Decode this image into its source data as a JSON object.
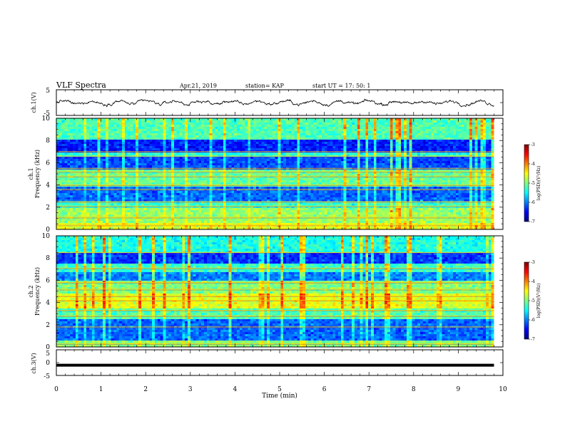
{
  "header": {
    "title": "VLF Spectra",
    "date": "Apr.21, 2019",
    "station": "station= KAP",
    "start": "start  UT =   17: 50: 1"
  },
  "chart_data": [
    {
      "type": "line",
      "name": "ch1-waveform",
      "ylabel": "ch.1(V)",
      "xlim": [
        0,
        10
      ],
      "ylim": [
        -5,
        5
      ],
      "yticks": [
        "5",
        "-5"
      ],
      "x_end": 9.8,
      "approx_range": [
        -1.5,
        1.5
      ]
    },
    {
      "type": "heatmap",
      "name": "ch1-spectrogram",
      "ylabel": "ch.1\nFrequency (kHz)",
      "xlim": [
        0,
        10
      ],
      "ylim": [
        0,
        10
      ],
      "yticks": [
        "0",
        "2",
        "4",
        "6",
        "8",
        "10"
      ],
      "x_end": 9.8,
      "bands": [
        {
          "f": [
            0,
            0.5
          ],
          "level": -4.6
        },
        {
          "f": [
            0.5,
            2.0
          ],
          "level": -4.9
        },
        {
          "f": [
            2.0,
            2.5
          ],
          "level": -5.3
        },
        {
          "f": [
            2.5,
            3.8
          ],
          "level": -6.1
        },
        {
          "f": [
            3.8,
            5.3
          ],
          "level": -5.1
        },
        {
          "f": [
            5.3,
            6.5
          ],
          "level": -6.2
        },
        {
          "f": [
            6.5,
            7.0
          ],
          "level": -5.4
        },
        {
          "f": [
            7.0,
            8.0
          ],
          "level": -6.4
        },
        {
          "f": [
            8.0,
            10.0
          ],
          "level": -5.2
        }
      ],
      "lines_khz": [
        0.4,
        1.1,
        2.1,
        2.5,
        3.6,
        4.0,
        4.8,
        5.2,
        5.5,
        6.6,
        7.0
      ],
      "colorbar": {
        "label": "log(PSD)(V²/Hz)",
        "range": [
          -7,
          -3
        ],
        "ticks": [
          "-3",
          "-4",
          "-5",
          "-6",
          "-7"
        ]
      }
    },
    {
      "type": "heatmap",
      "name": "ch2-spectrogram",
      "ylabel": "ch.2\nFrequency (kHz)",
      "xlim": [
        0,
        10
      ],
      "ylim": [
        0,
        10
      ],
      "yticks": [
        "0",
        "2",
        "4",
        "6",
        "8",
        "10"
      ],
      "x_end": 9.8,
      "bands": [
        {
          "f": [
            0,
            0.5
          ],
          "level": -5.0
        },
        {
          "f": [
            0.5,
            2.5
          ],
          "level": -6.1
        },
        {
          "f": [
            2.5,
            3.5
          ],
          "level": -5.2
        },
        {
          "f": [
            3.5,
            4.8
          ],
          "level": -4.6
        },
        {
          "f": [
            4.8,
            6.0
          ],
          "level": -5.0
        },
        {
          "f": [
            6.0,
            6.8
          ],
          "level": -6.0
        },
        {
          "f": [
            6.8,
            7.5
          ],
          "level": -5.3
        },
        {
          "f": [
            7.5,
            8.5
          ],
          "level": -6.3
        },
        {
          "f": [
            8.5,
            10.0
          ],
          "level": -5.4
        }
      ],
      "lines_khz": [
        0.3,
        1.8,
        2.8,
        3.3,
        4.2,
        4.6,
        5.2,
        5.8,
        7.1,
        8.5
      ],
      "colorbar": {
        "label": "log(PSD)(V²/Hz)",
        "range": [
          -7,
          -3
        ],
        "ticks": [
          "-3",
          "-4",
          "-5",
          "-6",
          "-7"
        ]
      }
    },
    {
      "type": "line",
      "name": "ch3-waveform",
      "ylabel": "ch.3(V)",
      "xlim": [
        0,
        10
      ],
      "ylim": [
        -5,
        5
      ],
      "yticks": [
        "5",
        "0",
        "-5"
      ],
      "x_end": 9.8,
      "constant": -1.0
    }
  ],
  "xaxis": {
    "label": "Time (min)",
    "ticks": [
      "0",
      "1",
      "2",
      "3",
      "4",
      "5",
      "6",
      "7",
      "8",
      "9",
      "10"
    ]
  },
  "colors": {
    "colormap": [
      "#00007f",
      "#0000ff",
      "#007fff",
      "#00ffff",
      "#7fff7f",
      "#ffff00",
      "#ff7f00",
      "#ff0000",
      "#7f0000"
    ]
  }
}
